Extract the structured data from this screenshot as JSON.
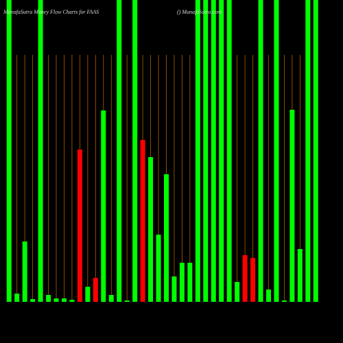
{
  "chart_data": {
    "type": "bar",
    "title": "MunafaSutra  Money Flow  Charts for FAAS",
    "subtitle": "() MunafaSutra.com",
    "categories": [
      null,
      null,
      null,
      null,
      null,
      null,
      null,
      null,
      null,
      null,
      null,
      null,
      null,
      null,
      null,
      null,
      null,
      null,
      null,
      null,
      null,
      null,
      null,
      null,
      null,
      null,
      null,
      null,
      null,
      null,
      null,
      null,
      null,
      null,
      null,
      null,
      null,
      null,
      null,
      null
    ],
    "values": [
      440,
      12,
      88,
      4,
      440,
      10,
      5,
      5,
      3,
      222,
      22,
      35,
      279,
      10,
      440,
      2,
      440,
      236,
      211,
      98,
      186,
      37,
      57,
      57,
      440,
      440,
      440,
      440,
      440,
      29,
      68,
      64,
      440,
      18,
      440,
      2,
      280,
      77,
      440,
      440
    ],
    "colors": [
      "#00ff00",
      "#00ff00",
      "#00ff00",
      "#00ff00",
      "#00ff00",
      "#00ff00",
      "#00ff00",
      "#00ff00",
      "#00ff00",
      "#ff0000",
      "#00ff00",
      "#ff0000",
      "#00ff00",
      "#00ff00",
      "#00ff00",
      "#00ff00",
      "#00ff00",
      "#ff0000",
      "#00ff00",
      "#00ff00",
      "#00ff00",
      "#00ff00",
      "#00ff00",
      "#00ff00",
      "#00ff00",
      "#00ff00",
      "#00ff00",
      "#00ff00",
      "#00ff00",
      "#00ff00",
      "#ff0000",
      "#ff0000",
      "#00ff00",
      "#00ff00",
      "#00ff00",
      "#00ff00",
      "#00ff00",
      "#00ff00",
      "#00ff00",
      "#00ff00"
    ],
    "ylim": [
      0,
      440
    ]
  }
}
